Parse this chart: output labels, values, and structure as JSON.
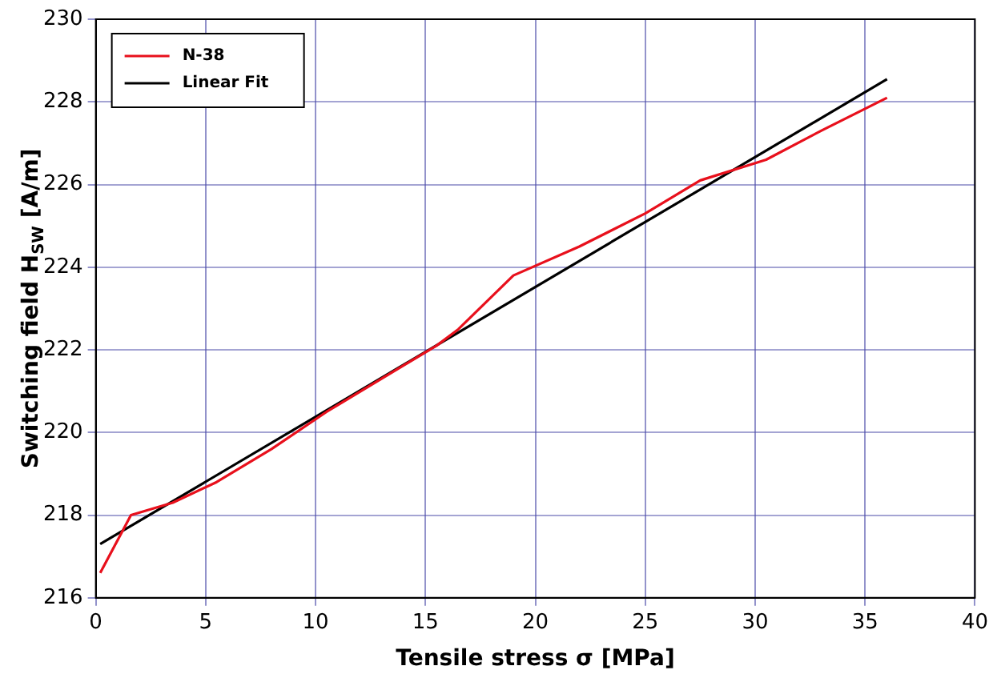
{
  "chart_data": {
    "type": "line",
    "xlabel": "Tensile stress σ [MPa]",
    "ylabel": "Switching field H$_{SW}$ [A/m]",
    "xlim": [
      0,
      40
    ],
    "xticks": [
      0,
      5,
      10,
      15,
      20,
      25,
      30,
      35,
      40
    ],
    "ylim": [
      216,
      230
    ],
    "yticks": [
      216,
      218,
      220,
      222,
      224,
      226,
      228,
      230
    ],
    "grid": true,
    "legend": "top left",
    "marker": "none",
    "line_style": "solid",
    "series": [
      {
        "name": "N-38",
        "color": "#e8101c",
        "x": [
          0.2,
          1.6,
          3.5,
          5.5,
          8,
          10.5,
          13,
          15.5,
          16.5,
          19,
          22,
          25,
          27.5,
          30.5,
          33,
          36
        ],
        "values": [
          216.6,
          218.0,
          218.3,
          218.8,
          219.6,
          220.5,
          221.3,
          222.1,
          222.5,
          223.8,
          224.5,
          225.3,
          226.1,
          226.6,
          227.3,
          228.1
        ]
      },
      {
        "name": "Linear Fit",
        "color": "#000000",
        "x": [
          0.2,
          36
        ],
        "values": [
          217.3,
          228.55
        ]
      }
    ]
  }
}
